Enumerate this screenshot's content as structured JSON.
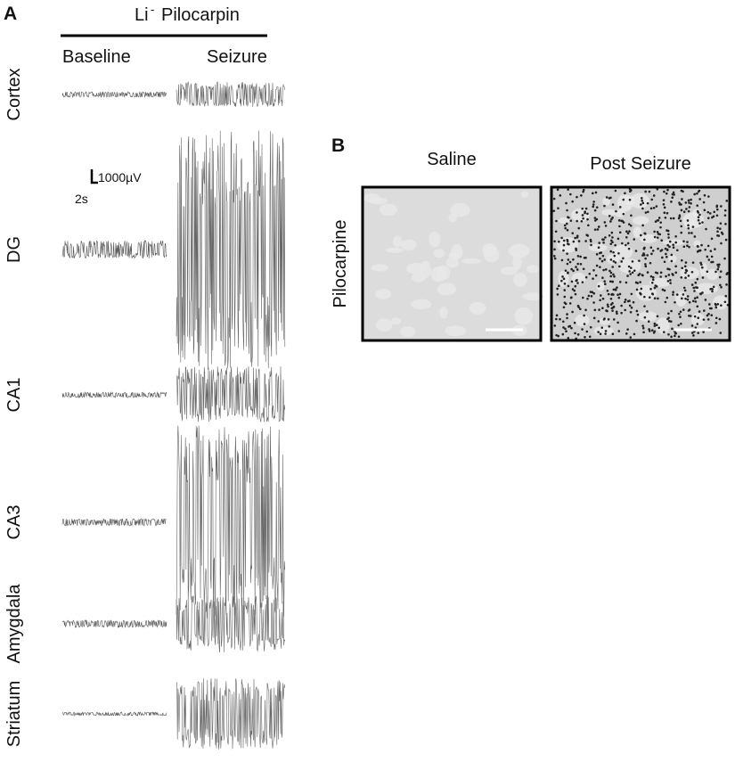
{
  "panel_a": {
    "label": "A",
    "header": {
      "prefix": "Li",
      "superscript": "-",
      "name": "Pilocarpin"
    },
    "columns": [
      "Baseline",
      "Seizure"
    ],
    "rows": [
      "Cortex",
      "DG",
      "CA1",
      "CA3",
      "Amygdala",
      "Striatum"
    ],
    "scale_bar": {
      "amplitude": "1000µV",
      "time": "2s"
    }
  },
  "panel_b": {
    "label": "B",
    "columns": [
      "Saline",
      "Post Seizure"
    ],
    "row": "Pilocarpine"
  }
}
